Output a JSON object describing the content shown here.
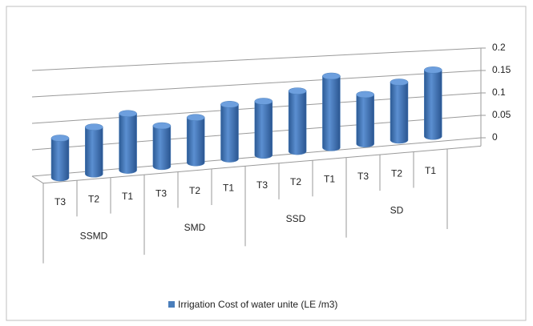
{
  "chart_data": {
    "type": "bar3d",
    "groups": [
      "SSMD",
      "SMD",
      "SSD",
      "SD"
    ],
    "categories": [
      "T3",
      "T2",
      "T1",
      "T3",
      "T2",
      "T1",
      "T3",
      "T2",
      "T1",
      "T3",
      "T2",
      "T1"
    ],
    "series": [
      {
        "name": "Irrigation Cost of water unite (LE /m3)",
        "color": "#4a7ebb",
        "values": [
          0.075,
          0.09,
          0.11,
          0.08,
          0.09,
          0.11,
          0.11,
          0.125,
          0.15,
          0.105,
          0.125,
          0.145
        ]
      }
    ],
    "ylim": [
      0,
      0.2
    ],
    "yticks": [
      0,
      0.05,
      0.1,
      0.15,
      0.2
    ],
    "grid": true,
    "legend": "bottom"
  }
}
